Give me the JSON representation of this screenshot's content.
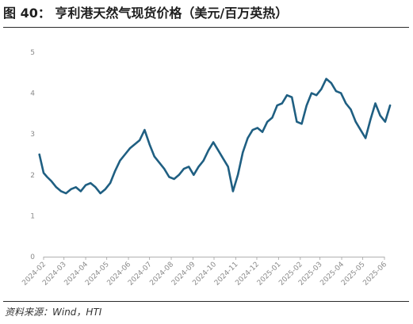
{
  "title": "图 40：  亨利港天然气现货价格（美元/百万英热）",
  "source": "资料来源：Wind，HTI",
  "chart_data": {
    "type": "line",
    "title": "",
    "xlabel": "",
    "ylabel": "",
    "ylim": [
      0,
      5
    ],
    "yticks": [
      0,
      1,
      2,
      3,
      4,
      5
    ],
    "xticks": [
      "2024-02",
      "2024-03",
      "2024-04",
      "2024-05",
      "2024-06",
      "2024-07",
      "2024-08",
      "2024-09",
      "2024-10",
      "2024-11",
      "2024-12",
      "2025-01",
      "2025-02",
      "2025-03",
      "2025-04",
      "2025-05",
      "2025-06"
    ],
    "grid": false,
    "legend": "none",
    "line_color": "#1f5f82",
    "series": [
      {
        "name": "",
        "x": [
          "2024-01-26",
          "2024-02-01",
          "2024-02-06",
          "2024-02-12",
          "2024-02-19",
          "2024-02-26",
          "2024-03-04",
          "2024-03-11",
          "2024-03-18",
          "2024-03-25",
          "2024-04-01",
          "2024-04-08",
          "2024-04-15",
          "2024-04-22",
          "2024-04-29",
          "2024-05-06",
          "2024-05-13",
          "2024-05-20",
          "2024-05-27",
          "2024-06-03",
          "2024-06-10",
          "2024-06-17",
          "2024-06-24",
          "2024-07-01",
          "2024-07-08",
          "2024-07-15",
          "2024-07-22",
          "2024-07-29",
          "2024-08-05",
          "2024-08-12",
          "2024-08-19",
          "2024-08-26",
          "2024-09-02",
          "2024-09-09",
          "2024-09-16",
          "2024-09-23",
          "2024-09-30",
          "2024-10-07",
          "2024-10-14",
          "2024-10-21",
          "2024-10-28",
          "2024-11-04",
          "2024-11-11",
          "2024-11-18",
          "2024-11-25",
          "2024-12-02",
          "2024-12-09",
          "2024-12-16",
          "2024-12-23",
          "2024-12-30",
          "2025-01-06",
          "2025-01-13",
          "2025-01-20",
          "2025-01-27",
          "2025-02-03",
          "2025-02-10",
          "2025-02-17",
          "2025-02-24",
          "2025-03-03",
          "2025-03-10",
          "2025-03-17",
          "2025-03-24",
          "2025-03-31",
          "2025-04-07",
          "2025-04-14",
          "2025-04-21",
          "2025-04-28",
          "2025-05-05",
          "2025-05-12",
          "2025-05-19",
          "2025-05-26",
          "2025-06-02",
          "2025-06-09"
        ],
        "values": [
          2.5,
          2.05,
          1.95,
          1.85,
          1.7,
          1.6,
          1.55,
          1.65,
          1.7,
          1.6,
          1.75,
          1.8,
          1.7,
          1.55,
          1.65,
          1.8,
          2.1,
          2.35,
          2.5,
          2.65,
          2.75,
          2.85,
          3.1,
          2.75,
          2.45,
          2.3,
          2.15,
          1.95,
          1.9,
          2.0,
          2.15,
          2.2,
          2.0,
          2.2,
          2.35,
          2.6,
          2.8,
          2.6,
          2.4,
          2.2,
          1.6,
          2.0,
          2.55,
          2.9,
          3.1,
          3.15,
          3.05,
          3.3,
          3.4,
          3.7,
          3.75,
          3.95,
          3.9,
          3.3,
          3.25,
          3.7,
          4.0,
          3.95,
          4.1,
          4.35,
          4.25,
          4.05,
          4.0,
          3.75,
          3.6,
          3.3,
          3.1,
          2.9,
          3.35,
          3.75,
          3.45,
          3.3,
          3.7
        ]
      }
    ]
  }
}
